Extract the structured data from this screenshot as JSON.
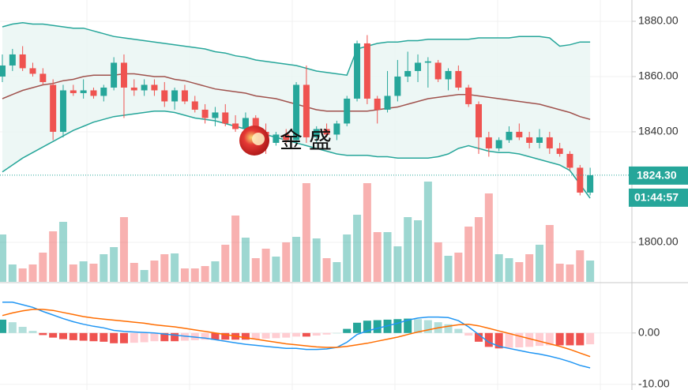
{
  "chart_data": [
    {
      "type": "candlestick",
      "open": [
        1860,
        1864,
        1868,
        1863,
        1861,
        1857,
        1840,
        1855,
        1854,
        1855,
        1853,
        1856,
        1865,
        1856,
        1855,
        1857,
        1855,
        1851,
        1855,
        1851,
        1848,
        1845,
        1847,
        1843,
        1841,
        1845,
        1840,
        1836,
        1839,
        1837,
        1857,
        1838,
        1841,
        1839,
        1843,
        1852,
        1872,
        1852,
        1848,
        1853,
        1860,
        1862,
        1865,
        1865,
        1859,
        1862,
        1856,
        1850,
        1838,
        1834,
        1837,
        1840,
        1838,
        1836,
        1838,
        1834,
        1832,
        1827,
        1818
      ],
      "high": [
        1868,
        1870,
        1871,
        1865,
        1863,
        1859,
        1857,
        1857,
        1859,
        1856,
        1857,
        1867,
        1868,
        1859,
        1859,
        1859,
        1858,
        1856,
        1857,
        1853,
        1850,
        1849,
        1850,
        1846,
        1847,
        1846,
        1843,
        1840,
        1841,
        1858,
        1864,
        1842,
        1843,
        1844,
        1853,
        1873,
        1875,
        1853,
        1862,
        1866,
        1869,
        1868,
        1867,
        1866,
        1863,
        1864,
        1857,
        1851,
        1840,
        1838,
        1842,
        1843,
        1840,
        1841,
        1840,
        1836,
        1833,
        1828,
        1827
      ],
      "low": [
        1858,
        1862,
        1862,
        1860,
        1857,
        1837,
        1838,
        1853,
        1852,
        1852,
        1851,
        1855,
        1845,
        1853,
        1853,
        1853,
        1849,
        1848,
        1850,
        1847,
        1843,
        1842,
        1842,
        1840,
        1840,
        1838,
        1832,
        1835,
        1836,
        1835,
        1836,
        1836,
        1838,
        1837,
        1842,
        1851,
        1850,
        1843,
        1847,
        1851,
        1858,
        1858,
        1856,
        1858,
        1855,
        1855,
        1849,
        1832,
        1831,
        1833,
        1836,
        1837,
        1834,
        1834,
        1832,
        1831,
        1826,
        1817,
        1817
      ],
      "close": [
        1864,
        1868,
        1863,
        1861,
        1858,
        1840,
        1855,
        1854,
        1855,
        1853,
        1856,
        1865,
        1856,
        1855,
        1857,
        1855,
        1851,
        1855,
        1851,
        1848,
        1845,
        1847,
        1843,
        1841,
        1845,
        1840,
        1836,
        1839,
        1837,
        1857,
        1838,
        1841,
        1839,
        1843,
        1852,
        1872,
        1852,
        1848,
        1853,
        1860,
        1862,
        1865,
        1865.5,
        1859,
        1862,
        1856,
        1850,
        1838,
        1834,
        1837,
        1840,
        1838,
        1836,
        1838,
        1834,
        1832,
        1827,
        1818,
        1824.3
      ],
      "bands": {
        "upper": [
          1878,
          1879,
          1879.5,
          1879,
          1879,
          1878.5,
          1878,
          1877.5,
          1877.5,
          1876.5,
          1875.5,
          1874.5,
          1874,
          1873.5,
          1873,
          1872.5,
          1872,
          1871.5,
          1871,
          1870.5,
          1870,
          1869,
          1868.5,
          1867.5,
          1867,
          1866,
          1865.5,
          1865,
          1864.5,
          1864,
          1863,
          1862,
          1861.5,
          1861,
          1860.5,
          1870,
          1871,
          1872,
          1872.5,
          1872.5,
          1873,
          1873,
          1873.5,
          1873.5,
          1873.5,
          1873.5,
          1873.5,
          1874,
          1874,
          1874,
          1874,
          1874.5,
          1874.5,
          1874.5,
          1874,
          1871,
          1871.5,
          1872.5,
          1872.5
        ],
        "middle": [
          1852,
          1853.5,
          1855,
          1856,
          1857,
          1857.5,
          1858.5,
          1859,
          1860,
          1860.5,
          1860.5,
          1860.5,
          1861,
          1861,
          1860.5,
          1860,
          1860,
          1859,
          1858.5,
          1857.5,
          1856.5,
          1855.5,
          1855,
          1854.5,
          1854,
          1853,
          1852.5,
          1852,
          1851,
          1850,
          1849,
          1848,
          1847.5,
          1847.5,
          1847.5,
          1847.5,
          1847.5,
          1848,
          1848.5,
          1849,
          1850,
          1851,
          1852,
          1852.5,
          1853,
          1853.5,
          1853.5,
          1853,
          1852.5,
          1852,
          1851.5,
          1851,
          1850.5,
          1850,
          1849,
          1848,
          1847,
          1845.5,
          1844.5
        ],
        "lower": [
          1825.5,
          1828,
          1830.5,
          1832.5,
          1834.5,
          1836.5,
          1838.5,
          1840.5,
          1842,
          1843.5,
          1844.5,
          1845.5,
          1846,
          1846.5,
          1847,
          1847.5,
          1847.5,
          1847,
          1846,
          1845,
          1844.5,
          1844,
          1843,
          1842,
          1841,
          1840,
          1839,
          1838,
          1837,
          1836,
          1835,
          1834,
          1833,
          1832,
          1831.5,
          1831.5,
          1831.5,
          1831,
          1831,
          1830.5,
          1830.5,
          1830.5,
          1830.5,
          1831,
          1832,
          1834,
          1835,
          1834,
          1833,
          1832.5,
          1832.5,
          1832,
          1831,
          1830,
          1829,
          1828,
          1826,
          1821,
          1816
        ]
      },
      "volume": [
        60,
        22,
        17,
        22,
        37,
        64,
        76,
        22,
        26,
        23,
        35,
        44,
        82,
        24,
        15,
        27,
        35,
        36,
        17,
        17,
        20,
        26,
        47,
        84,
        56,
        30,
        42,
        32,
        50,
        57,
        125,
        55,
        30,
        25,
        60,
        85,
        125,
        63,
        63,
        45,
        82,
        78,
        127,
        50,
        33,
        37,
        70,
        82,
        112,
        35,
        30,
        25,
        35,
        47,
        72,
        23,
        22,
        40,
        27
      ],
      "up_color": "#26a69a",
      "down_color": "#ef5350",
      "band_color": "#26a69a",
      "middle_color": "#a0524d",
      "band_fill": "#e8f5f3",
      "ylim": [
        1785.7,
        1887.7
      ],
      "yticks": [
        {
          "value": 1800,
          "label": "1800.00"
        },
        {
          "value": 1840,
          "label": "1840.00"
        },
        {
          "value": 1860,
          "label": "1860.00"
        },
        {
          "value": 1880,
          "label": "1880.00"
        }
      ],
      "grid": true,
      "last_price": {
        "value": 1824.3,
        "label": "1824.30"
      },
      "countdown": "01:44:57",
      "watermark": "金 盛"
    },
    {
      "type": "macd",
      "series": [
        {
          "color": "#2196f3",
          "values": [
            6.0,
            6.0,
            5.5,
            5.0,
            4.2,
            3.5,
            2.8,
            2.2,
            1.7,
            1.3,
            1.0,
            0.5,
            0.3,
            0.2,
            0.1,
            0,
            -0.2,
            -0.4,
            -0.6,
            -0.8,
            -1.0,
            -1.3,
            -1.6,
            -1.9,
            -2.2,
            -2.4,
            -2.6,
            -2.8,
            -3.0,
            -3.0,
            -3.2,
            -3.2,
            -3.1,
            -2.8,
            -1.8,
            -0.3,
            0.4,
            0.9,
            1.4,
            1.9,
            2.5,
            2.9,
            3.1,
            3.1,
            3.0,
            2.4,
            1.2,
            -0.3,
            -1.8,
            -2.6,
            -3.0,
            -3.4,
            -3.8,
            -4.1,
            -4.5,
            -5.0,
            -5.6,
            -6.3,
            -6.8
          ]
        },
        {
          "color": "#ff6d00",
          "values": [
            3.4,
            3.9,
            4.3,
            4.6,
            4.6,
            4.4,
            4.0,
            3.6,
            3.2,
            2.9,
            2.7,
            2.5,
            2.3,
            2.1,
            1.9,
            1.6,
            1.4,
            1.2,
            0.9,
            0.6,
            0.3,
            0,
            -0.3,
            -0.6,
            -0.9,
            -1.2,
            -1.5,
            -1.8,
            -2.1,
            -2.3,
            -2.5,
            -2.7,
            -2.8,
            -2.8,
            -2.6,
            -2.3,
            -2.0,
            -1.6,
            -1.2,
            -0.8,
            -0.3,
            0.2,
            0.6,
            1.0,
            1.3,
            1.6,
            1.7,
            1.4,
            0.9,
            0.4,
            -0.1,
            -0.6,
            -1.1,
            -1.6,
            -2.1,
            -2.6,
            -3.2,
            -3.9,
            -4.6
          ]
        }
      ],
      "histogram": [
        2.6,
        2.1,
        1.2,
        0.4,
        -0.4,
        -0.9,
        -1.2,
        -1.4,
        -1.5,
        -1.6,
        -1.7,
        -2.0,
        -2.0,
        -1.9,
        -1.8,
        -1.6,
        -1.6,
        -1.6,
        -1.5,
        -1.4,
        -1.3,
        -1.3,
        -1.3,
        -1.3,
        -1.3,
        -1.2,
        -1.1,
        -1.0,
        -0.9,
        -0.7,
        -0.7,
        -0.5,
        -0.3,
        0,
        0.8,
        2.0,
        2.4,
        2.5,
        2.6,
        2.7,
        2.8,
        2.7,
        2.5,
        2.1,
        1.7,
        0.8,
        -0.5,
        -1.7,
        -2.7,
        -3.0,
        -2.9,
        -2.8,
        -2.7,
        -2.5,
        -2.4,
        -2.4,
        -2.4,
        -2.4,
        -2.2
      ],
      "hist_colors": {
        "up_strong": "#26a69a",
        "up_weak": "#b2dfdb",
        "down_strong": "#ef5350",
        "down_weak": "#ffcdd2"
      },
      "ylim": [
        -11.1,
        9.5
      ],
      "yticks": [
        {
          "value": -10,
          "label": "-10.00"
        },
        {
          "value": 0,
          "label": "0.00"
        }
      ],
      "grid": true
    }
  ]
}
